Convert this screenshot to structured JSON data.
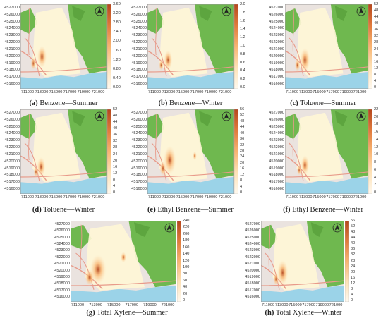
{
  "y_ticks": [
    "4527000",
    "4526000",
    "4525000",
    "4524000",
    "4523000",
    "4522000",
    "4521000",
    "4520000",
    "4519000",
    "4518000",
    "4517000",
    "4516000"
  ],
  "x_ticks": [
    "711000",
    "713000",
    "715000",
    "717000",
    "719000",
    "721000"
  ],
  "north_arrow_icon": "north-arrow-icon",
  "colormap": [
    "#fff9ef",
    "#fde2b8",
    "#f8b472",
    "#e07a3c",
    "#b5471d"
  ],
  "map_colors": {
    "land": "#eae3df",
    "green": "#6fb84f",
    "sea": "#9bd3e8",
    "road": "#e89a8a",
    "study_area": "#fff6d6"
  },
  "panels": [
    {
      "letter": "(a)",
      "title": "Benzene—Summer",
      "ticks": [
        "3.60",
        "3.20",
        "2.80",
        "2.40",
        "2.00",
        "1.60",
        "1.20",
        "0.80",
        "0.40",
        "0.00"
      ]
    },
    {
      "letter": "(b)",
      "title": "Benzene—Winter",
      "ticks": [
        "2.0",
        "1.8",
        "1.6",
        "1.4",
        "1.2",
        "1.0",
        "0.8",
        "0.6",
        "0.4",
        "0.2",
        "0.0"
      ]
    },
    {
      "letter": "(c)",
      "title": "Toluene—Summer",
      "ticks": [
        "52",
        "48",
        "44",
        "40",
        "36",
        "32",
        "28",
        "24",
        "20",
        "16",
        "12",
        "8",
        "4",
        "0"
      ]
    },
    {
      "letter": "(d)",
      "title": "Toluene—Winter",
      "ticks": [
        "52",
        "48",
        "44",
        "40",
        "36",
        "32",
        "28",
        "24",
        "20",
        "16",
        "12",
        "8",
        "4",
        "0"
      ]
    },
    {
      "letter": "(e)",
      "title": "Ethyl Benzene—Summer",
      "ticks": [
        "56",
        "52",
        "48",
        "44",
        "40",
        "36",
        "32",
        "28",
        "24",
        "20",
        "16",
        "12",
        "8",
        "4",
        "0"
      ]
    },
    {
      "letter": "(f)",
      "title": "Ethyl Benzene—Winter",
      "ticks": [
        "22",
        "20",
        "18",
        "16",
        "14",
        "12",
        "10",
        "8",
        "6",
        "4",
        "2",
        "0"
      ]
    },
    {
      "letter": "(g)",
      "title": "Total Xylene—Summer",
      "ticks": [
        "240",
        "220",
        "200",
        "180",
        "160",
        "140",
        "120",
        "100",
        "80",
        "60",
        "40",
        "20",
        "0"
      ]
    },
    {
      "letter": "(h)",
      "title": "Total Xylene—Winter",
      "ticks": [
        "56",
        "52",
        "48",
        "44",
        "40",
        "36",
        "32",
        "28",
        "24",
        "20",
        "16",
        "12",
        "8",
        "4",
        "0"
      ]
    }
  ]
}
